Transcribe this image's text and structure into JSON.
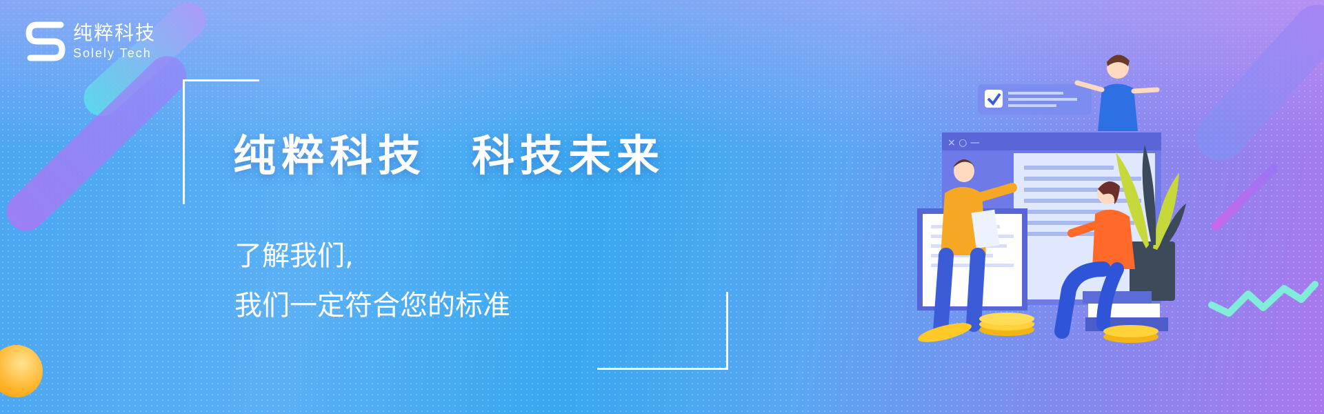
{
  "logo": {
    "name_cn": "纯粹科技",
    "name_en": "Solely Tech",
    "mark_icon": "s-logo-icon"
  },
  "hero": {
    "headline_part1": "纯粹科技",
    "headline_part2": "科技未来",
    "subline1": "了解我们,",
    "subline2": "我们一定符合您的标准"
  },
  "illustration": {
    "icons": [
      "checkbox-card-icon",
      "browser-window-icon",
      "person-standing-icon",
      "person-sitting-icon",
      "presenter-icon",
      "plant-icon",
      "coins-icon",
      "books-icon",
      "zigzag-arrow-icon"
    ]
  },
  "colors": {
    "bg_left": "#4aa6f2",
    "bg_right": "#a978ec",
    "accent_yellow": "#ffd33a",
    "accent_orange": "#ff6a2a"
  }
}
